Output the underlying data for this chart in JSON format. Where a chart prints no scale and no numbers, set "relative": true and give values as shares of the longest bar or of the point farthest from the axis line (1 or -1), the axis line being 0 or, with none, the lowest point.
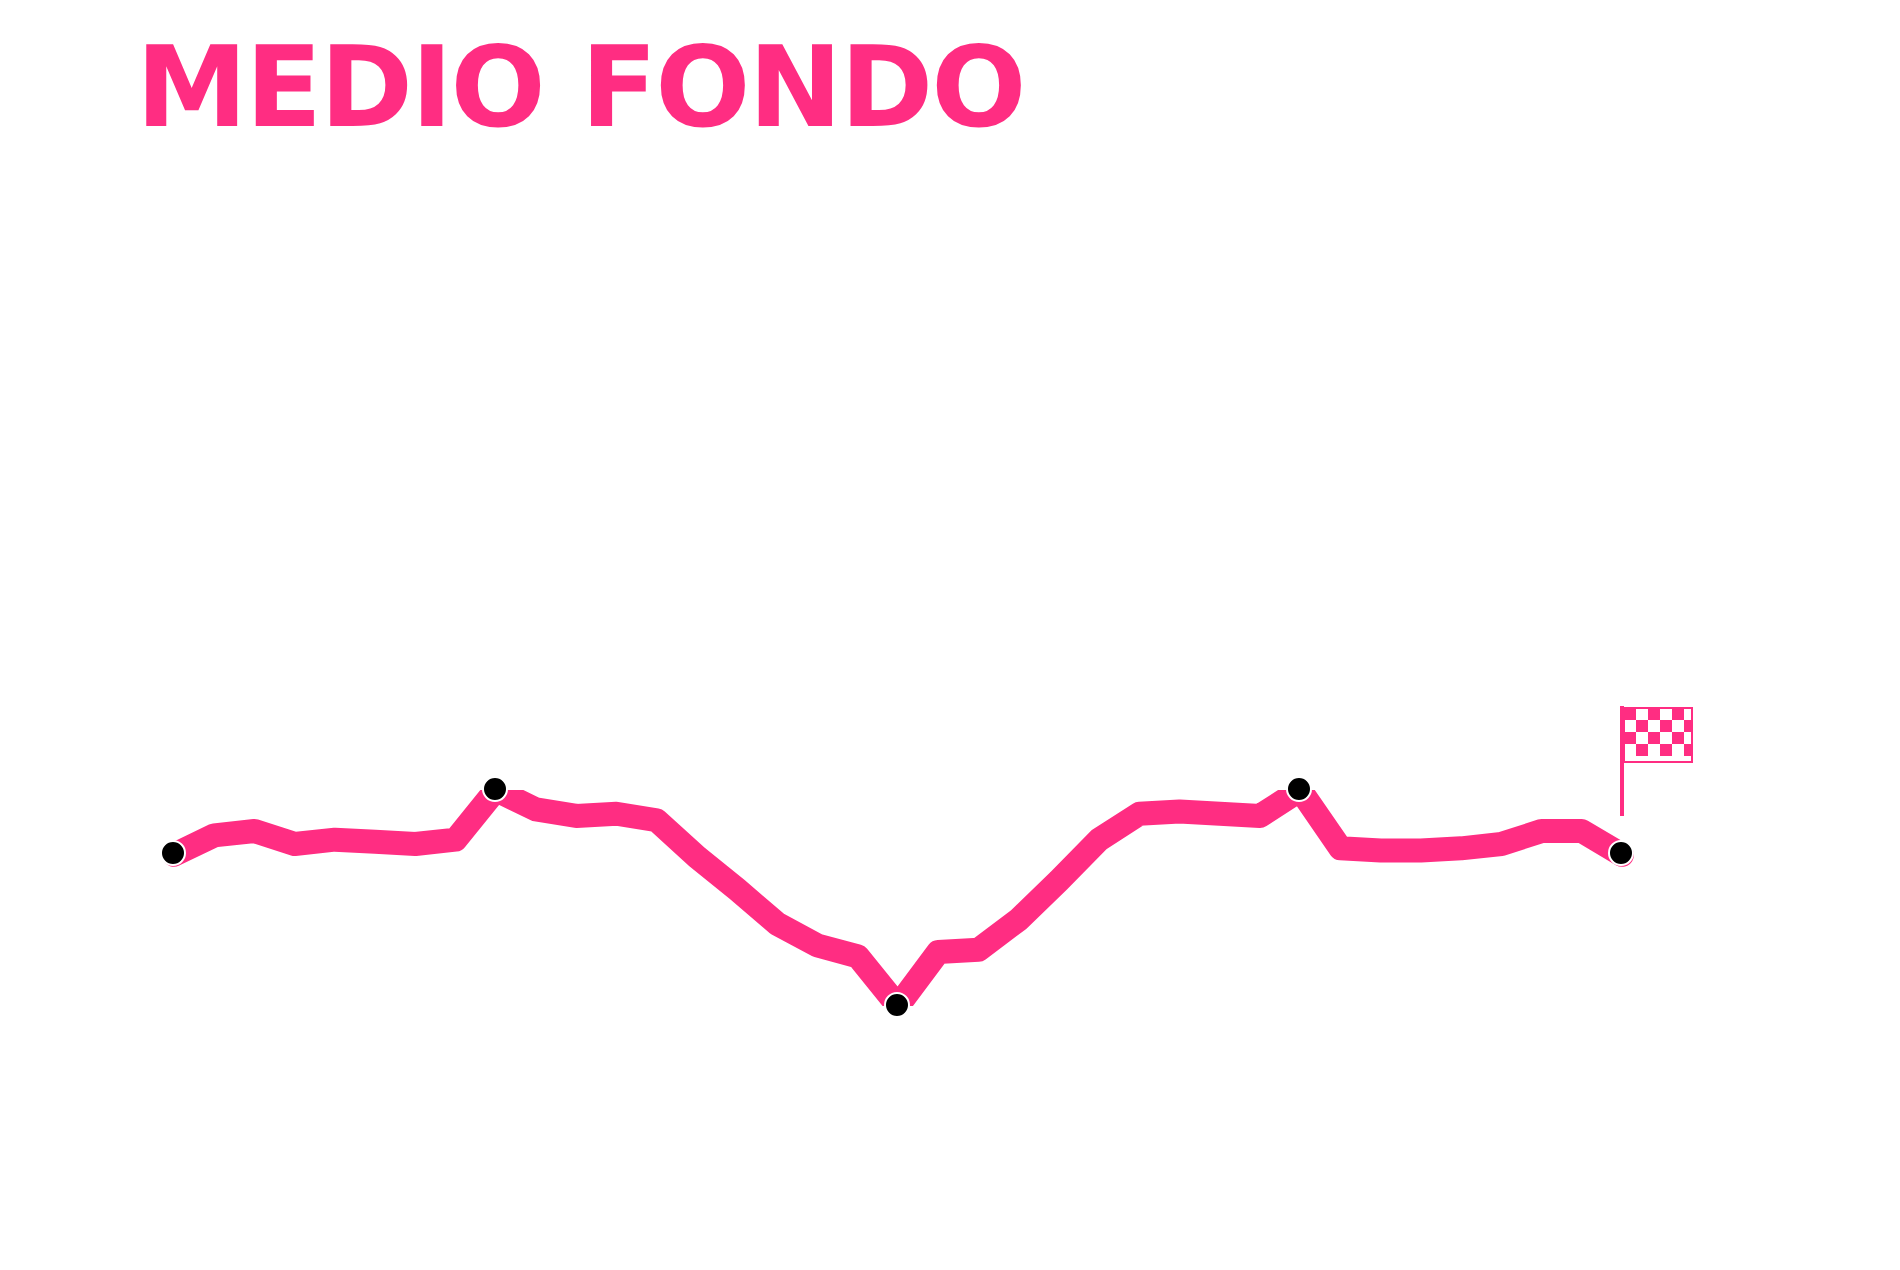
{
  "chart_data": {
    "type": "line",
    "title": "MEDIO FONDO",
    "relative": true,
    "categories": [
      null,
      null,
      null,
      null,
      null,
      null,
      null,
      null,
      null,
      null,
      null,
      null,
      null,
      null,
      null,
      null,
      null,
      null,
      null,
      null,
      null,
      null,
      null,
      null,
      null,
      null,
      null,
      null,
      null,
      null,
      null,
      null,
      null,
      null,
      null,
      null,
      null
    ],
    "series": [
      {
        "color": "#ff2d82",
        "line_style": "solid",
        "values": [
          0.7,
          0.79,
          0.81,
          0.75,
          0.77,
          0.76,
          0.75,
          0.77,
          1.0,
          0.91,
          0.88,
          0.89,
          0.86,
          0.69,
          0.54,
          0.38,
          0.28,
          0.23,
          0,
          0.25,
          0.26,
          0.4,
          0.58,
          0.77,
          0.89,
          0.9,
          0.89,
          0.88,
          1.0,
          0.73,
          0.72,
          0.72,
          0.73,
          0.75,
          0.81,
          0.81,
          0.7
        ]
      }
    ]
  }
}
